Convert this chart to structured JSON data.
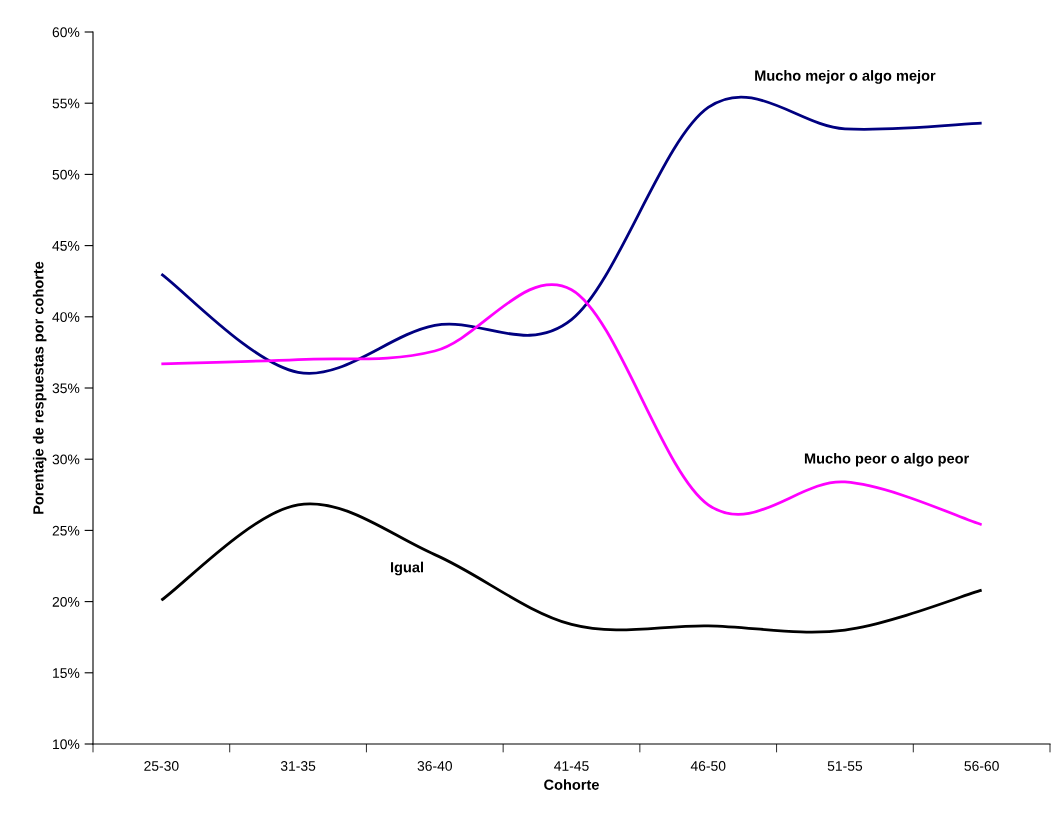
{
  "chart_data": {
    "type": "line",
    "xlabel": "Cohorte",
    "ylabel": "Porentaje de respuestas por cohorte",
    "categories": [
      "25-30",
      "31-35",
      "36-40",
      "41-45",
      "46-50",
      "51-55",
      "56-60"
    ],
    "series": [
      {
        "name": "Mucho mejor o algo mejor",
        "color": "#000080",
        "values": [
          43.0,
          36.1,
          39.4,
          39.8,
          54.7,
          53.2,
          53.6
        ]
      },
      {
        "name": "Mucho peor o algo peor",
        "color": "#ff00ff",
        "values": [
          36.7,
          37.0,
          37.6,
          41.9,
          26.8,
          28.4,
          25.4
        ]
      },
      {
        "name": "Igual",
        "color": "#000000",
        "values": [
          20.1,
          26.8,
          23.3,
          18.4,
          18.3,
          18.0,
          20.8
        ]
      }
    ],
    "ylim": [
      10,
      60
    ],
    "yticks": [
      {
        "value": 10,
        "label": "10%"
      },
      {
        "value": 15,
        "label": "15%"
      },
      {
        "value": 20,
        "label": "20%"
      },
      {
        "value": 25,
        "label": "25%"
      },
      {
        "value": 30,
        "label": "30%"
      },
      {
        "value": 35,
        "label": "35%"
      },
      {
        "value": 40,
        "label": "40%"
      },
      {
        "value": 45,
        "label": "45%"
      },
      {
        "value": 50,
        "label": "50%"
      },
      {
        "value": 55,
        "label": "55%"
      },
      {
        "value": 60,
        "label": "60%"
      }
    ],
    "grid": false,
    "legend": false,
    "marker": "none",
    "line_style": "solid"
  }
}
